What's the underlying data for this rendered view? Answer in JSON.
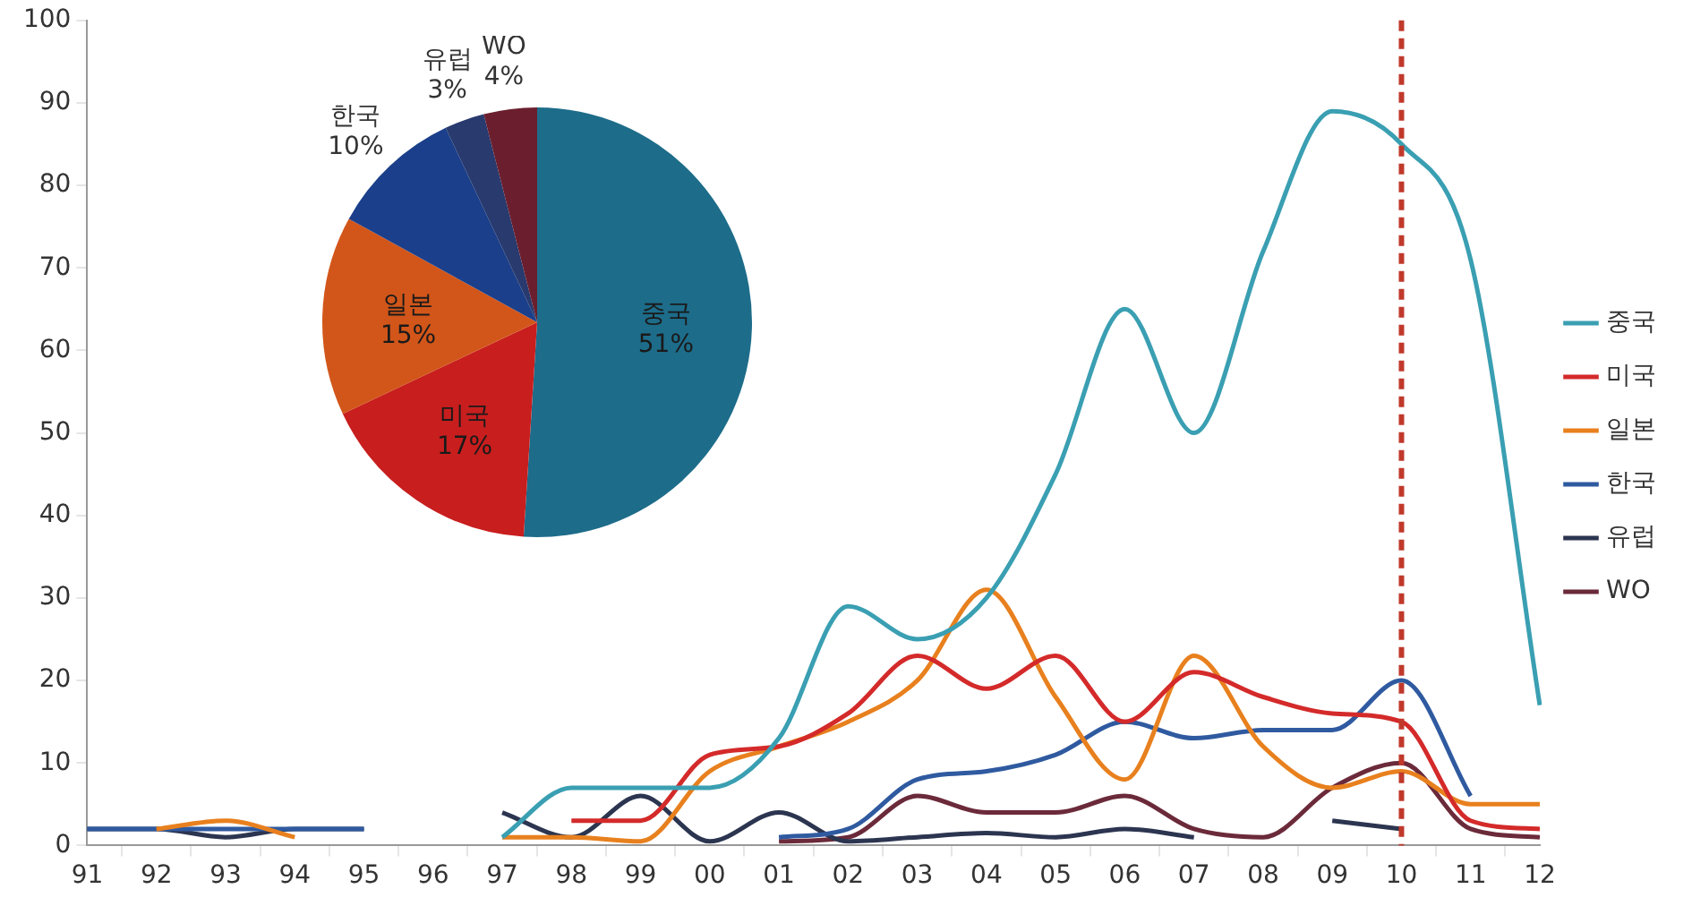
{
  "chart_data": [
    {
      "type": "line",
      "categories": [
        "91",
        "92",
        "93",
        "94",
        "95",
        "96",
        "97",
        "98",
        "99",
        "00",
        "01",
        "02",
        "03",
        "04",
        "05",
        "06",
        "07",
        "08",
        "09",
        "10",
        "11",
        "12"
      ],
      "series": [
        {
          "name": "중국",
          "color": "#3a9fb2",
          "values": [
            null,
            null,
            null,
            null,
            null,
            null,
            1,
            7,
            7,
            7,
            13,
            29,
            25,
            30,
            45,
            65,
            50,
            72,
            89,
            85,
            71,
            17
          ]
        },
        {
          "name": "미국",
          "color": "#d42a2a",
          "values": [
            null,
            null,
            null,
            null,
            null,
            null,
            null,
            3,
            3,
            11,
            12,
            16,
            23,
            19,
            23,
            15,
            21,
            18,
            16,
            15,
            3,
            2
          ]
        },
        {
          "name": "일본",
          "color": "#e8801e",
          "values": [
            null,
            2,
            3,
            1,
            null,
            null,
            1,
            1,
            0.5,
            9,
            12,
            15,
            20,
            31,
            18,
            8,
            23,
            12,
            7,
            9,
            5,
            5
          ]
        },
        {
          "name": "한국",
          "color": "#2f5aa0",
          "values": [
            2,
            2,
            2,
            2,
            2,
            null,
            null,
            null,
            null,
            null,
            1,
            2,
            8,
            9,
            11,
            15,
            13,
            14,
            14,
            20,
            6,
            null
          ]
        },
        {
          "name": "유럽",
          "color": "#2c3550",
          "values": [
            2,
            2,
            1,
            2,
            2,
            null,
            4,
            1,
            6,
            0.5,
            4,
            0.5,
            1,
            1.5,
            1,
            2,
            1,
            null,
            3,
            2,
            null,
            null
          ]
        },
        {
          "name": "WO",
          "color": "#6b2a3a",
          "values": [
            null,
            null,
            null,
            null,
            null,
            null,
            null,
            null,
            null,
            null,
            0.5,
            1,
            6,
            4,
            4,
            6,
            2,
            1,
            7,
            10,
            2,
            1
          ]
        }
      ],
      "ylim": [
        0,
        100
      ],
      "yticks": [
        0,
        10,
        20,
        30,
        40,
        50,
        60,
        70,
        80,
        90,
        100
      ],
      "grid": false,
      "legend": "right",
      "marker": "none",
      "ref_lines": [
        {
          "axis": "x",
          "value": "10",
          "color": "#c0392b",
          "line_style": "dashed"
        }
      ]
    },
    {
      "type": "pie",
      "categories": [
        "중국",
        "미국",
        "일본",
        "한국",
        "유럽",
        "WO"
      ],
      "values": [
        51,
        17,
        15,
        10,
        3,
        4
      ],
      "value_labels": [
        "51%",
        "17%",
        "15%",
        "10%",
        "3%",
        "4%"
      ],
      "colors": [
        "#1d6c8a",
        "#c81e1e",
        "#d2561a",
        "#1b3f8a",
        "#283a6e",
        "#6b1f2e"
      ]
    }
  ]
}
